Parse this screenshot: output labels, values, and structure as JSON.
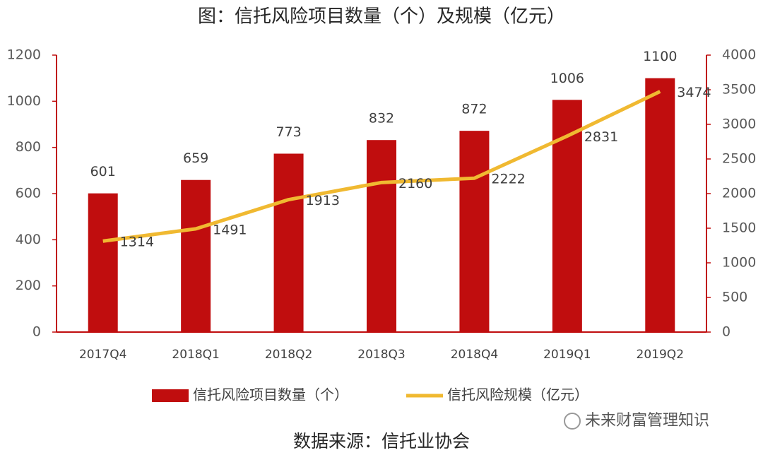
{
  "chart_data": {
    "type": "bar",
    "title": "图：信托风险项目数量（个）及规模（亿元）",
    "categories": [
      "2017Q4",
      "2018Q1",
      "2018Q2",
      "2018Q3",
      "2018Q4",
      "2019Q1",
      "2019Q2"
    ],
    "series": [
      {
        "name": "信托风险项目数量（个）",
        "type": "bar",
        "color": "#c00d0e",
        "values": [
          601,
          659,
          773,
          832,
          872,
          1006,
          1100
        ]
      },
      {
        "name": "信托风险规模（亿元）",
        "type": "line",
        "axis": "y2",
        "color": "#f0b931",
        "values": [
          1314,
          1491,
          1913,
          2160,
          2222,
          2831,
          3474
        ]
      }
    ],
    "ylim": [
      0,
      1200
    ],
    "yticks": [
      0,
      200,
      400,
      600,
      800,
      1000,
      1200
    ],
    "y2lim": [
      0,
      4000
    ],
    "y2ticks": [
      0,
      500,
      1000,
      1500,
      2000,
      2500,
      3000,
      3500,
      4000
    ],
    "axis_color": "#c00d0e",
    "source": "数据来源：信托业协会",
    "watermark": "未来财富管理知识"
  }
}
